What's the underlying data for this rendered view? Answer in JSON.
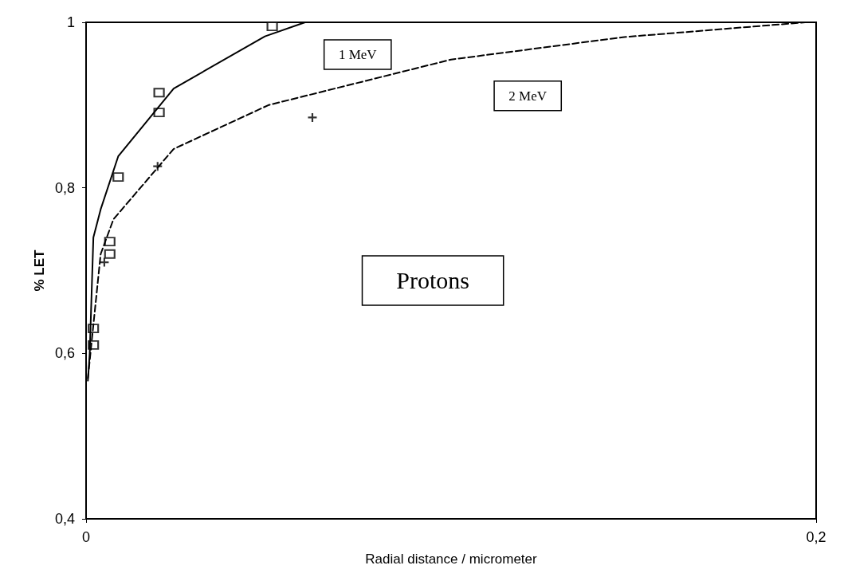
{
  "chart_data": {
    "type": "line",
    "xlabel": "Radial distance / micrometer",
    "ylabel": "% LET",
    "xlim": [
      0,
      0.2
    ],
    "ylim": [
      0.4,
      1
    ],
    "xticks": [
      0,
      {
        "value": 0.2,
        "label": "0,2"
      }
    ],
    "yticks": [
      {
        "value": 0.4,
        "label": "0,4"
      },
      {
        "value": 0.6,
        "label": "0,6"
      },
      {
        "value": 0.8,
        "label": "0,8"
      },
      {
        "value": 1,
        "label": "1"
      }
    ],
    "grid": false,
    "series": [
      {
        "name": "1 MeV",
        "color": "#000000",
        "line_style": "solid",
        "marker": "none",
        "x": [
          0.0005,
          0.001,
          0.002,
          0.004,
          0.0088,
          0.024,
          0.049,
          0.06,
          0.2
        ],
        "values": [
          0.567,
          0.6,
          0.74,
          0.774,
          0.838,
          0.92,
          0.983,
          1,
          1
        ]
      },
      {
        "name": "2 MeV",
        "color": "#000000",
        "line_style": "dashed",
        "marker": "none",
        "x": [
          0.0005,
          0.004,
          0.0075,
          0.024,
          0.05,
          0.1,
          0.147,
          0.197,
          0.2
        ],
        "values": [
          0.57,
          0.72,
          0.762,
          0.847,
          0.9,
          0.955,
          0.982,
          1,
          1
        ]
      },
      {
        "type": "scatter",
        "color": "#000000",
        "marker": "square",
        "x": [
          0.002,
          0.002,
          0.0065,
          0.0065,
          0.0088,
          0.02,
          0.02,
          0.051
        ],
        "values": [
          0.61,
          0.63,
          0.72,
          0.735,
          0.813,
          0.891,
          0.915,
          0.995
        ]
      },
      {
        "type": "scatter",
        "color": "#000000",
        "marker": "cross",
        "x": [
          0.005,
          0.0196,
          0.062
        ],
        "values": [
          0.71,
          0.826,
          0.885
        ]
      }
    ],
    "annotations": [
      "Protons"
    ]
  }
}
